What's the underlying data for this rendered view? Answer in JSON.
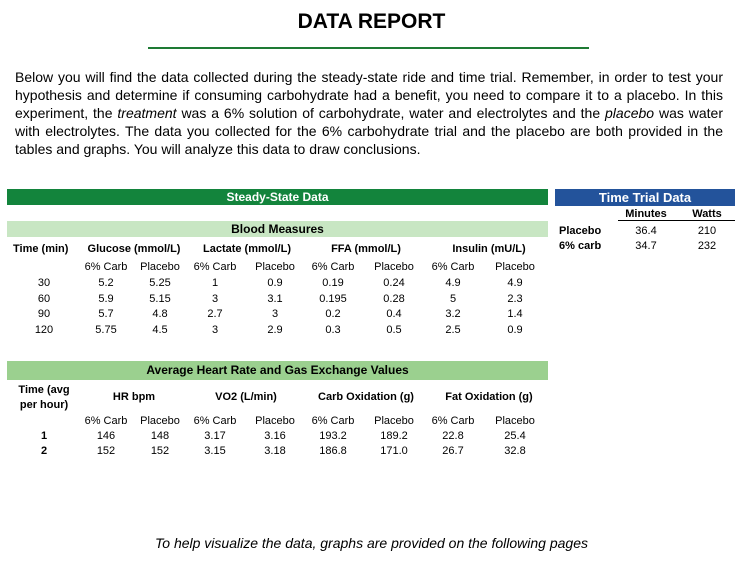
{
  "title": "DATA REPORT",
  "intro": {
    "p1": "Below you will find the data collected during the steady-state ride and time trial.  Remember, in order to test your hypothesis and determine if consuming carbohydrate had a benefit, you need to compare it to a placebo.  In this experiment, the ",
    "em1": "treatment",
    "p2": " was a 6% solution of carbohydrate, water and electrolytes and the ",
    "em2": "placebo",
    "p3": " was water with electrolytes.  The data you collected for the 6% carbohydrate trial and the placebo are both provided in the tables and graphs.  You will analyze this data to draw conclusions."
  },
  "steady_state": {
    "header": "Steady-State Data",
    "blood_header": "Blood Measures",
    "time_label": "Time (min)",
    "measures": [
      "Glucose (mmol/L)",
      "Lactate (mmol/L)",
      "FFA (mmol/L)",
      "Insulin (mU/L)"
    ],
    "sub": [
      "6% Carb",
      "Placebo"
    ],
    "rows": [
      {
        "time": "30",
        "vals": [
          "5.2",
          "5.25",
          "1",
          "0.9",
          "0.19",
          "0.24",
          "4.9",
          "4.9"
        ]
      },
      {
        "time": "60",
        "vals": [
          "5.9",
          "5.15",
          "3",
          "3.1",
          "0.195",
          "0.28",
          "5",
          "2.3"
        ]
      },
      {
        "time": "90",
        "vals": [
          "5.7",
          "4.8",
          "2.7",
          "3",
          "0.2",
          "0.4",
          "3.2",
          "1.4"
        ]
      },
      {
        "time": "120",
        "vals": [
          "5.75",
          "4.5",
          "3",
          "2.9",
          "0.3",
          "0.5",
          "2.5",
          "0.9"
        ]
      }
    ]
  },
  "hr_gas": {
    "header": "Average Heart Rate and Gas Exchange Values",
    "time_label_1": "Time (avg",
    "time_label_2": "per hour)",
    "measures": [
      "HR bpm",
      "VO2 (L/min)",
      "Carb Oxidation (g)",
      "Fat Oxidation (g)"
    ],
    "rows": [
      {
        "time": "1",
        "vals": [
          "146",
          "148",
          "3.17",
          "3.16",
          "193.2",
          "189.2",
          "22.8",
          "25.4"
        ]
      },
      {
        "time": "2",
        "vals": [
          "152",
          "152",
          "3.15",
          "3.18",
          "186.8",
          "171.0",
          "26.7",
          "32.8"
        ]
      }
    ]
  },
  "time_trial": {
    "header": "Time Trial Data",
    "cols": [
      "Minutes",
      "Watts"
    ],
    "rows": [
      {
        "label": "Placebo",
        "minutes": "36.4",
        "watts": "210"
      },
      {
        "label": "6% carb",
        "minutes": "34.7",
        "watts": "232"
      }
    ]
  },
  "footer": "To help visualize the data, graphs are provided on the following pages"
}
